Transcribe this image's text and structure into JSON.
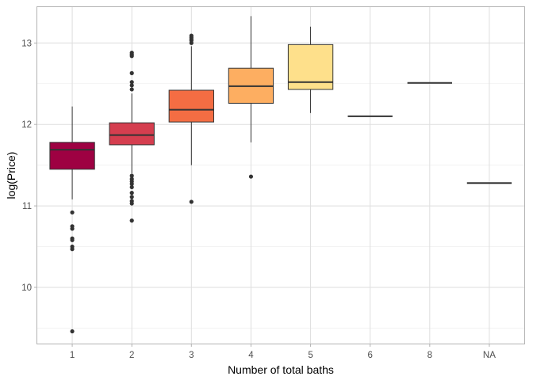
{
  "chart_data": {
    "type": "boxplot",
    "xlabel": "Number of total baths",
    "ylabel": "log(Price)",
    "ylim": [
      9.3,
      13.45
    ],
    "yticks": [
      10,
      11,
      12,
      13
    ],
    "grid": true,
    "categories": [
      "1",
      "2",
      "3",
      "4",
      "5",
      "6",
      "8",
      "NA"
    ],
    "boxes": [
      {
        "category": "1",
        "min": 11.08,
        "q1": 11.45,
        "median": 11.69,
        "q3": 11.78,
        "max": 12.22,
        "color": "#9e0142",
        "outliers": [
          10.92,
          10.75,
          10.72,
          10.6,
          10.58,
          10.5,
          10.47,
          9.46
        ]
      },
      {
        "category": "2",
        "min": 11.4,
        "q1": 11.75,
        "median": 11.87,
        "q3": 12.02,
        "max": 12.38,
        "color": "#d53e4f",
        "outliers": [
          12.88,
          12.86,
          12.84,
          12.63,
          12.52,
          12.48,
          12.43,
          11.37,
          11.33,
          11.3,
          11.27,
          11.23,
          11.16,
          11.11,
          11.06,
          11.03,
          10.82
        ]
      },
      {
        "category": "3",
        "min": 11.5,
        "q1": 12.03,
        "median": 12.18,
        "q3": 12.42,
        "max": 12.96,
        "color": "#f46d43",
        "outliers": [
          13.09,
          13.07,
          13.05,
          13.03,
          13.0,
          11.05
        ]
      },
      {
        "category": "4",
        "min": 11.78,
        "q1": 12.26,
        "median": 12.47,
        "q3": 12.69,
        "max": 13.33,
        "color": "#fdae61",
        "outliers": [
          11.36
        ]
      },
      {
        "category": "5",
        "min": 12.14,
        "q1": 12.43,
        "median": 12.52,
        "q3": 12.98,
        "max": 13.2,
        "color": "#fee08b",
        "outliers": []
      },
      {
        "category": "6",
        "min": 12.1,
        "q1": 12.1,
        "median": 12.1,
        "q3": 12.1,
        "max": 12.1,
        "color": "#ffffbf",
        "outliers": []
      },
      {
        "category": "8",
        "min": 12.51,
        "q1": 12.51,
        "median": 12.51,
        "q3": 12.51,
        "max": 12.51,
        "color": "#e6f598",
        "outliers": []
      },
      {
        "category": "NA",
        "min": 11.28,
        "q1": 11.28,
        "median": 11.28,
        "q3": 11.28,
        "max": 11.28,
        "color": "#abdda4",
        "outliers": []
      }
    ]
  }
}
